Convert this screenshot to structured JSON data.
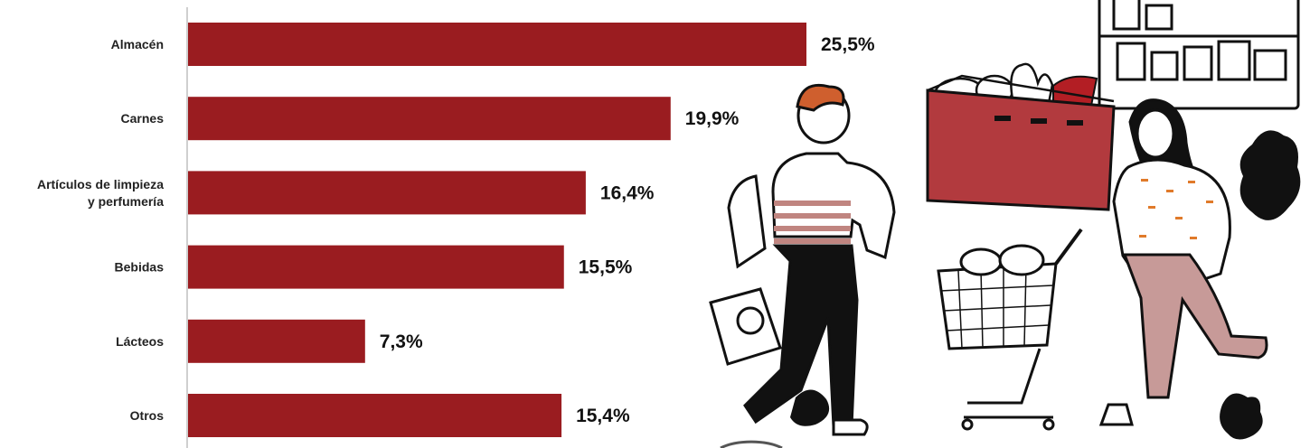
{
  "chart_data": {
    "type": "bar",
    "orientation": "horizontal",
    "categories": [
      [
        "Almacén"
      ],
      [
        "Carnes"
      ],
      [
        "Artículos de limpieza",
        "y perfumería"
      ],
      [
        "Bebidas"
      ],
      [
        "Lácteos"
      ],
      [
        "Otros"
      ]
    ],
    "values": [
      25.5,
      19.9,
      16.4,
      15.5,
      7.3,
      15.4
    ],
    "value_labels": [
      "25,5%",
      "19,9%",
      "16,4%",
      "15,5%",
      "7,3%",
      "15,4%"
    ],
    "title": "",
    "xlabel": "",
    "ylabel": "",
    "xlim": [
      0,
      25.5
    ],
    "grid": false,
    "legend": "none",
    "colors": {
      "bar": "#9a1c20",
      "axis": "#bfbfbf"
    }
  },
  "illustration": {
    "subject": "shoppers-with-basket-and-cart",
    "colors": {
      "crate": "#b23a3e",
      "pants": "#c79a98",
      "stripes": "#c08580",
      "ink": "#111111"
    }
  }
}
